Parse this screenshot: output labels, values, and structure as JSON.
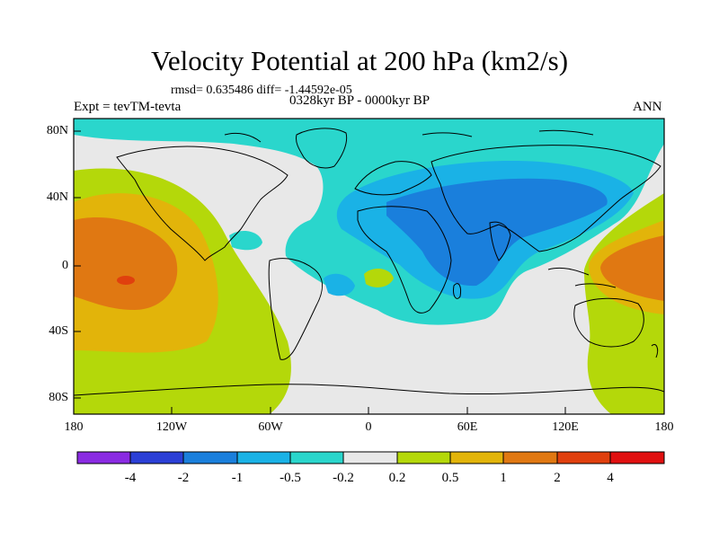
{
  "title": "Velocity Potential at 200 hPa (km2/s)",
  "stats_line": "rmsd= 0.635486 diff= -1.44592e-05",
  "experiment": "Expt = tevTM-tevta",
  "period": "0328kyr BP - 0000kyr BP",
  "season": "ANN",
  "lat_labels": [
    "80N",
    "40N",
    "0",
    "40S",
    "80S"
  ],
  "lon_labels": [
    "180",
    "120W",
    "60W",
    "0",
    "60E",
    "120E",
    "180"
  ],
  "colorbar": {
    "labels": [
      "-4",
      "-2",
      "-1",
      "-0.5",
      "-0.2",
      "0.2",
      "0.5",
      "1",
      "2",
      "4"
    ],
    "colors": [
      "#8a2be2",
      "#2b3fd6",
      "#1a7fdc",
      "#1ab2e6",
      "#2ad6cc",
      "#e8e8e8",
      "#b4d80a",
      "#e2b40a",
      "#e07812",
      "#e0400e",
      "#e01010"
    ]
  },
  "field_colors": {
    "near_zero": "#e8e8e8",
    "neg_0_2": "#2ad6cc",
    "neg_0_5": "#1ab2e6",
    "neg_1": "#1a7fdc",
    "pos_0_2": "#b4d80a",
    "pos_0_5": "#e2b40a",
    "pos_1": "#e07812",
    "pos_2": "#e0400e",
    "pos_4": "#e01010"
  }
}
